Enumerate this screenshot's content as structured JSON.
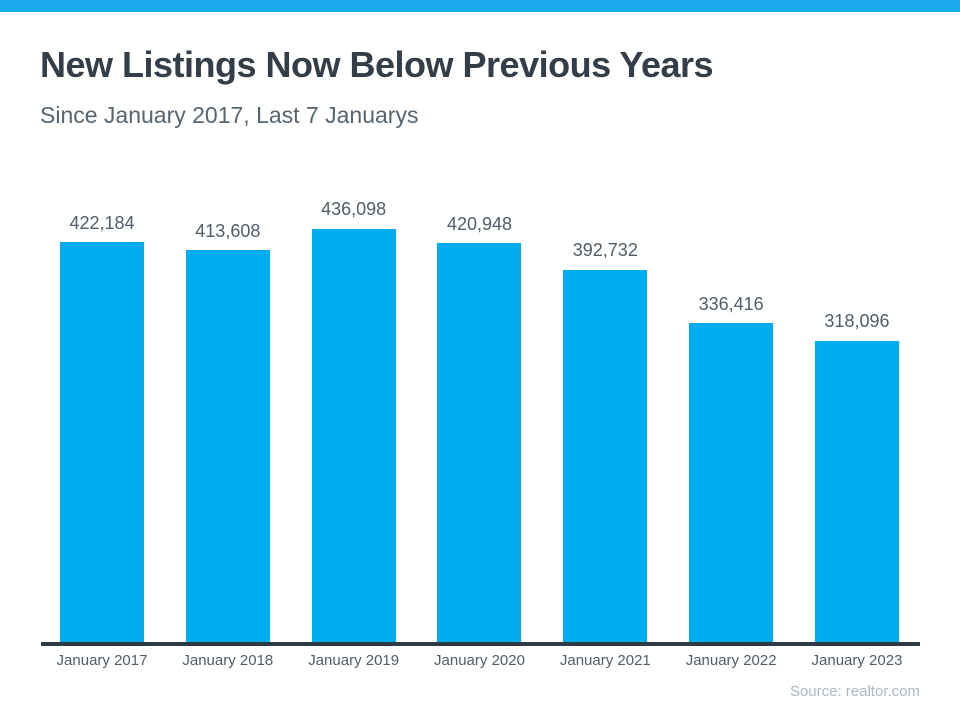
{
  "banner": {
    "color": "#1AA9EA"
  },
  "header": {
    "title": "New Listings Now Below Previous Years",
    "subtitle": "Since January 2017, Last 7 Januarys"
  },
  "chart_data": {
    "type": "bar",
    "title": "New Listings Now Below Previous Years",
    "subtitle": "Since January 2017, Last 7 Januarys",
    "categories": [
      "January 2017",
      "January 2018",
      "January 2019",
      "January 2020",
      "January 2021",
      "January 2022",
      "January 2023"
    ],
    "values": [
      422184,
      413608,
      436098,
      420948,
      392732,
      336416,
      318096
    ],
    "value_labels": [
      "422,184",
      "413,608",
      "436,098",
      "420,948",
      "392,732",
      "336,416",
      "318,096"
    ],
    "xlabel": "",
    "ylabel": "",
    "ylim": [
      0,
      436098
    ],
    "grid": false,
    "legend": "none",
    "bar_color": "#00AEEF",
    "axis_color": "#2E3A44",
    "value_label_position": "above-bars"
  },
  "footer": {
    "source": "Source: realtor.com"
  }
}
